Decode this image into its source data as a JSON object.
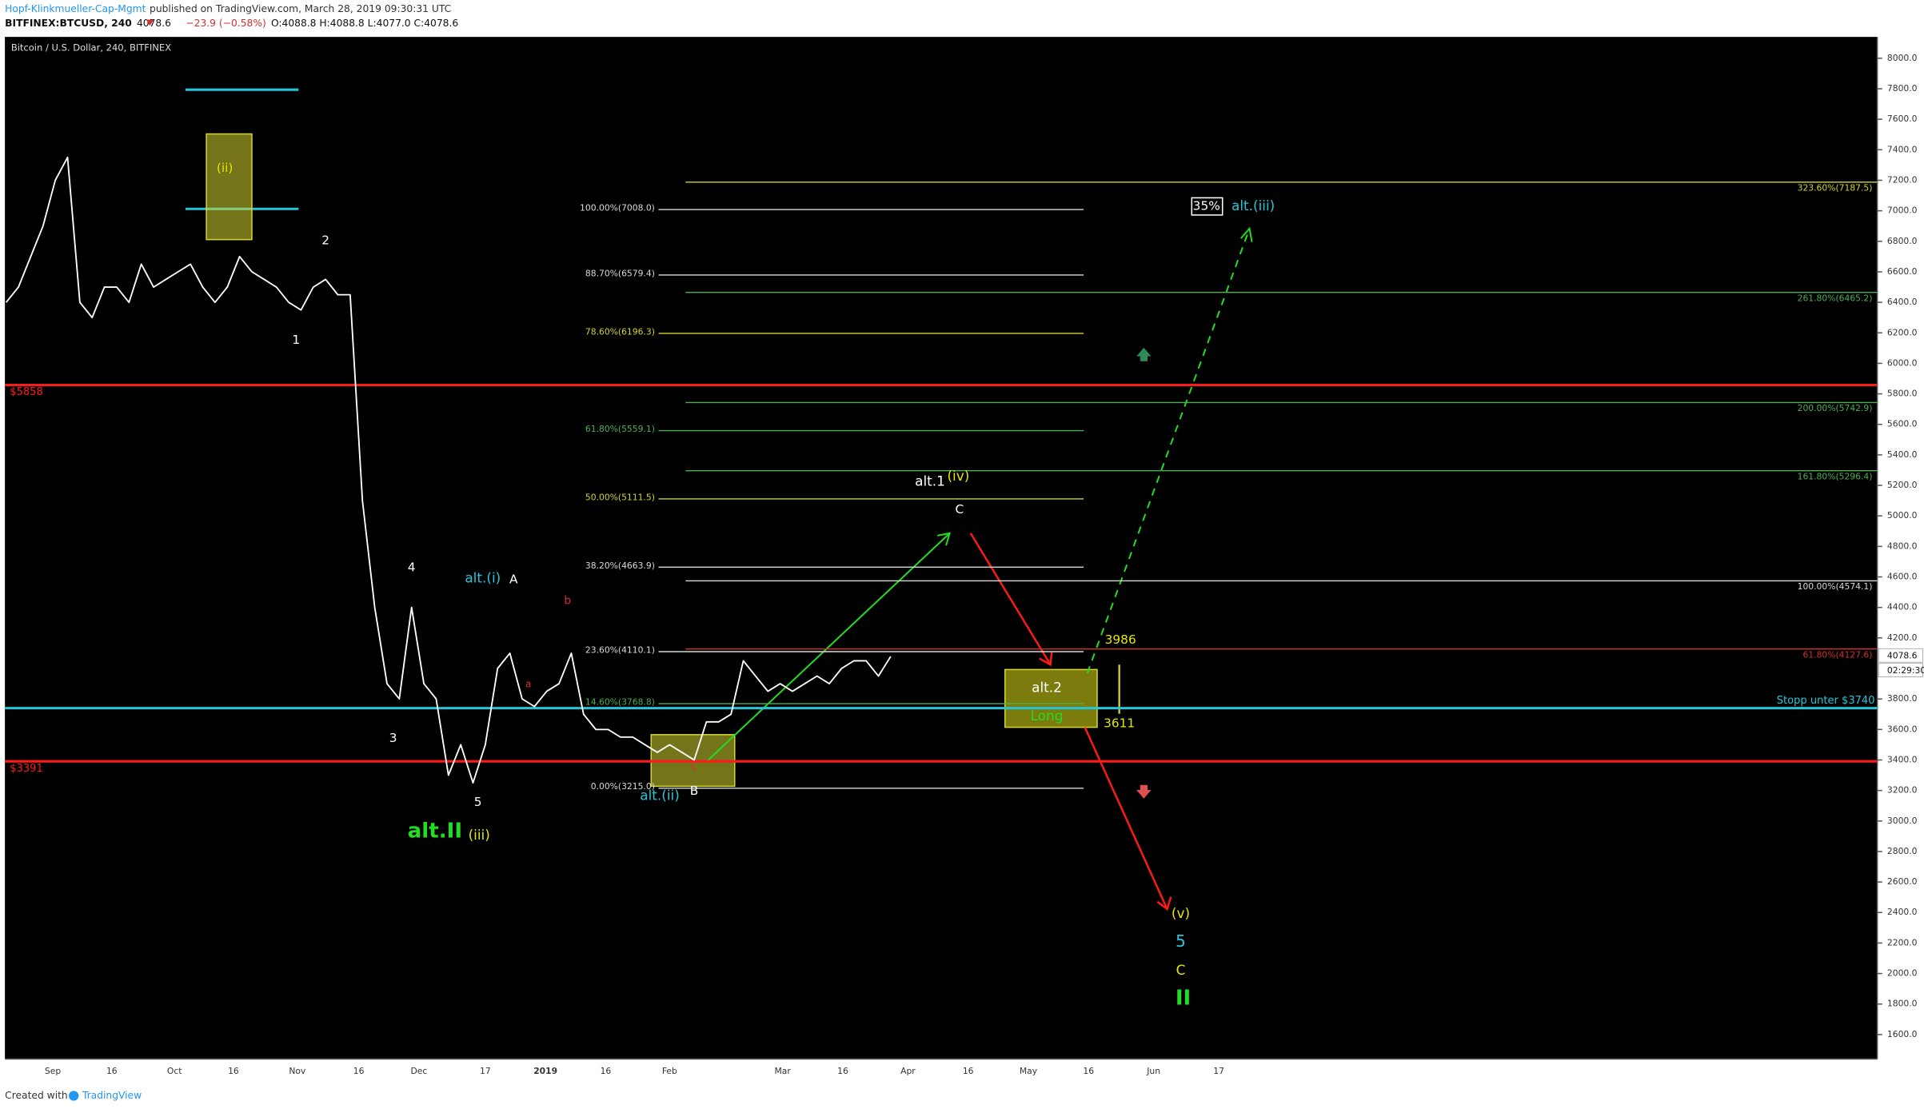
{
  "header": {
    "author": "Hopf-Klinkmueller-Cap-Mgmt",
    "published": "published on TradingView.com, March 28, 2019 09:30:31 UTC",
    "symbol": "BITFINEX:BTCUSD, 240",
    "last": "4078.6",
    "change": "−23.9 (−0.58%)",
    "ohlc": "O:4088.8 H:4088.8 L:4077.0 C:4078.6"
  },
  "chart_data": {
    "type": "line",
    "title": "Bitcoin / U.S. Dollar, 240, BITFINEX",
    "series": [
      {
        "color": "#ffffff",
        "values": [
          6400,
          6500,
          6700,
          6900,
          7200,
          7350,
          6400,
          6300,
          6500,
          6500,
          6400,
          6650,
          6500,
          6550,
          6600,
          6650,
          6500,
          6400,
          6500,
          6700,
          6600,
          6550,
          6500,
          6400,
          6350,
          6500,
          6550,
          6450,
          6450,
          5100,
          4400,
          3900,
          3800,
          4400,
          3900,
          3800,
          3300,
          3500,
          3250,
          3500,
          4000,
          4100,
          3800,
          3750,
          3850,
          3900,
          4100,
          3700,
          3600,
          3600,
          3550,
          3550,
          3500,
          3450,
          3500,
          3450,
          3400,
          3650,
          3650,
          3700,
          4050,
          3950,
          3850,
          3900,
          3850,
          3900,
          3950,
          3900,
          4000,
          4050,
          4050,
          3950,
          4078.6
        ]
      }
    ],
    "ylim": [
      1440,
      8140
    ],
    "yticks": [
      {
        "value": 1600,
        "label": "1600.0"
      },
      {
        "value": 1800,
        "label": "1800.0"
      },
      {
        "value": 2000,
        "label": "2000.0"
      },
      {
        "value": 2200,
        "label": "2200.0"
      },
      {
        "value": 2400,
        "label": "2400.0"
      },
      {
        "value": 2600,
        "label": "2600.0"
      },
      {
        "value": 2800,
        "label": "2800.0"
      },
      {
        "value": 3000,
        "label": "3000.0"
      },
      {
        "value": 3200,
        "label": "3200.0"
      },
      {
        "value": 3400,
        "label": "3400.0"
      },
      {
        "value": 3600,
        "label": "3600.0"
      },
      {
        "value": 3800,
        "label": "3800.0"
      },
      {
        "value": 4200,
        "label": "4200.0"
      },
      {
        "value": 4400,
        "label": "4400.0"
      },
      {
        "value": 4600,
        "label": "4600.0"
      },
      {
        "value": 4800,
        "label": "4800.0"
      },
      {
        "value": 5000,
        "label": "5000.0"
      },
      {
        "value": 5200,
        "label": "5200.0"
      },
      {
        "value": 5400,
        "label": "5400.0"
      },
      {
        "value": 5600,
        "label": "5600.0"
      },
      {
        "value": 5800,
        "label": "5800.0"
      },
      {
        "value": 6000,
        "label": "6000.0"
      },
      {
        "value": 6200,
        "label": "6200.0"
      },
      {
        "value": 6400,
        "label": "6400.0"
      },
      {
        "value": 6600,
        "label": "6600.0"
      },
      {
        "value": 6800,
        "label": "6800.0"
      },
      {
        "value": 7000,
        "label": "7000.0"
      },
      {
        "value": 7200,
        "label": "7200.0"
      },
      {
        "value": 7400,
        "label": "7400.0"
      },
      {
        "value": 7600,
        "label": "7600.0"
      },
      {
        "value": 7800,
        "label": "7800.0"
      },
      {
        "value": 8000,
        "label": "8000.0"
      }
    ],
    "time_labels": [
      "Sep",
      "16",
      "Oct",
      "16",
      "Nov",
      "16",
      "Dec",
      "17",
      "2019",
      "16",
      "Feb",
      "Mar",
      "16",
      "Apr",
      "16",
      "May",
      "16",
      "Jun",
      "17"
    ],
    "price_tags": [
      "4078.6",
      "02:29:30"
    ],
    "levels": [
      {
        "label": "$5858",
        "value": 5858,
        "color": "#ff1a1a"
      },
      {
        "label": "$3391",
        "value": 3391,
        "color": "#ff1a1a"
      },
      {
        "label": "Stopp unter $3740",
        "value": 3740,
        "color": "#26c6da"
      }
    ],
    "fib_left": [
      {
        "label": "100.00%(7008.0)",
        "value": 7008.0,
        "color": "#d9d9d9"
      },
      {
        "label": "88.70%(6579.4)",
        "value": 6579.4,
        "color": "#d9d9d9"
      },
      {
        "label": "78.60%(6196.3)",
        "value": 6196.3,
        "color": "#d4d430"
      },
      {
        "label": "61.80%(5559.1)",
        "value": 5559.1,
        "color": "#4caf50"
      },
      {
        "label": "50.00%(5111.5)",
        "value": 5111.5,
        "color": "#d4d430"
      },
      {
        "label": "38.20%(4663.9)",
        "value": 4663.9,
        "color": "#d9d9d9"
      },
      {
        "label": "23.60%(4110.1)",
        "value": 4110.1,
        "color": "#d9d9d9"
      },
      {
        "label": "14.60%(3768.8)",
        "value": 3768.8,
        "color": "#4caf50"
      },
      {
        "label": "0.00%(3215.0)",
        "value": 3215.0,
        "color": "#d9d9d9"
      }
    ],
    "fib_right": [
      {
        "label": "323.60%(7187.5)",
        "value": 7187.5,
        "color": "#d4d430"
      },
      {
        "label": "261.80%(6465.2)",
        "value": 6465.2,
        "color": "#4caf50"
      },
      {
        "label": "200.00%(5742.9)",
        "value": 5742.9,
        "color": "#4caf50"
      },
      {
        "label": "161.80%(5296.4)",
        "value": 5296.4,
        "color": "#4caf50"
      },
      {
        "label": "100.00%(4574.1)",
        "value": 4574.1,
        "color": "#d9d9d9"
      },
      {
        "label": "61.80%(4127.6)",
        "value": 4127.6,
        "color": "#d32f2f"
      }
    ],
    "annotations": [
      {
        "text": "(ii)",
        "color": "#e6e600"
      },
      {
        "text": "2",
        "color": "#ffffff"
      },
      {
        "text": "1",
        "color": "#ffffff"
      },
      {
        "text": "4",
        "color": "#ffffff"
      },
      {
        "text": "3",
        "color": "#ffffff"
      },
      {
        "text": "5",
        "color": "#ffffff"
      },
      {
        "text": "alt.(i)",
        "color": "#26c6da"
      },
      {
        "text": "A",
        "color": "#ffffff"
      },
      {
        "text": "b",
        "color": "#d32f2f"
      },
      {
        "text": "a",
        "color": "#d32f2f"
      },
      {
        "text": "c",
        "color": "#d32f2f"
      },
      {
        "text": "B",
        "color": "#ffffff"
      },
      {
        "text": "alt.(ii)",
        "color": "#26c6da"
      },
      {
        "text": "alt.II",
        "color": "#22dd22"
      },
      {
        "text": "(iii)",
        "color": "#e6e600"
      },
      {
        "text": "alt.1",
        "color": "#ffffff"
      },
      {
        "text": "(iv)",
        "color": "#e6e600"
      },
      {
        "text": "C",
        "color": "#ffffff"
      },
      {
        "text": "alt.2",
        "color": "#ffffff"
      },
      {
        "text": "Long",
        "color": "#22dd22"
      },
      {
        "text": "3986",
        "color": "#e6e600"
      },
      {
        "text": "3611",
        "color": "#e6e600"
      },
      {
        "text": "35%",
        "color": "#ffffff"
      },
      {
        "text": "alt.(iii)",
        "color": "#26c6da"
      },
      {
        "text": "(v)",
        "color": "#e6e600"
      },
      {
        "text": "5",
        "color": "#26c6da"
      },
      {
        "text": "C",
        "color": "#e6e600"
      },
      {
        "text": "II",
        "color": "#22dd22"
      }
    ]
  },
  "footer": {
    "created": "Created with",
    "brand": "TradingView"
  }
}
